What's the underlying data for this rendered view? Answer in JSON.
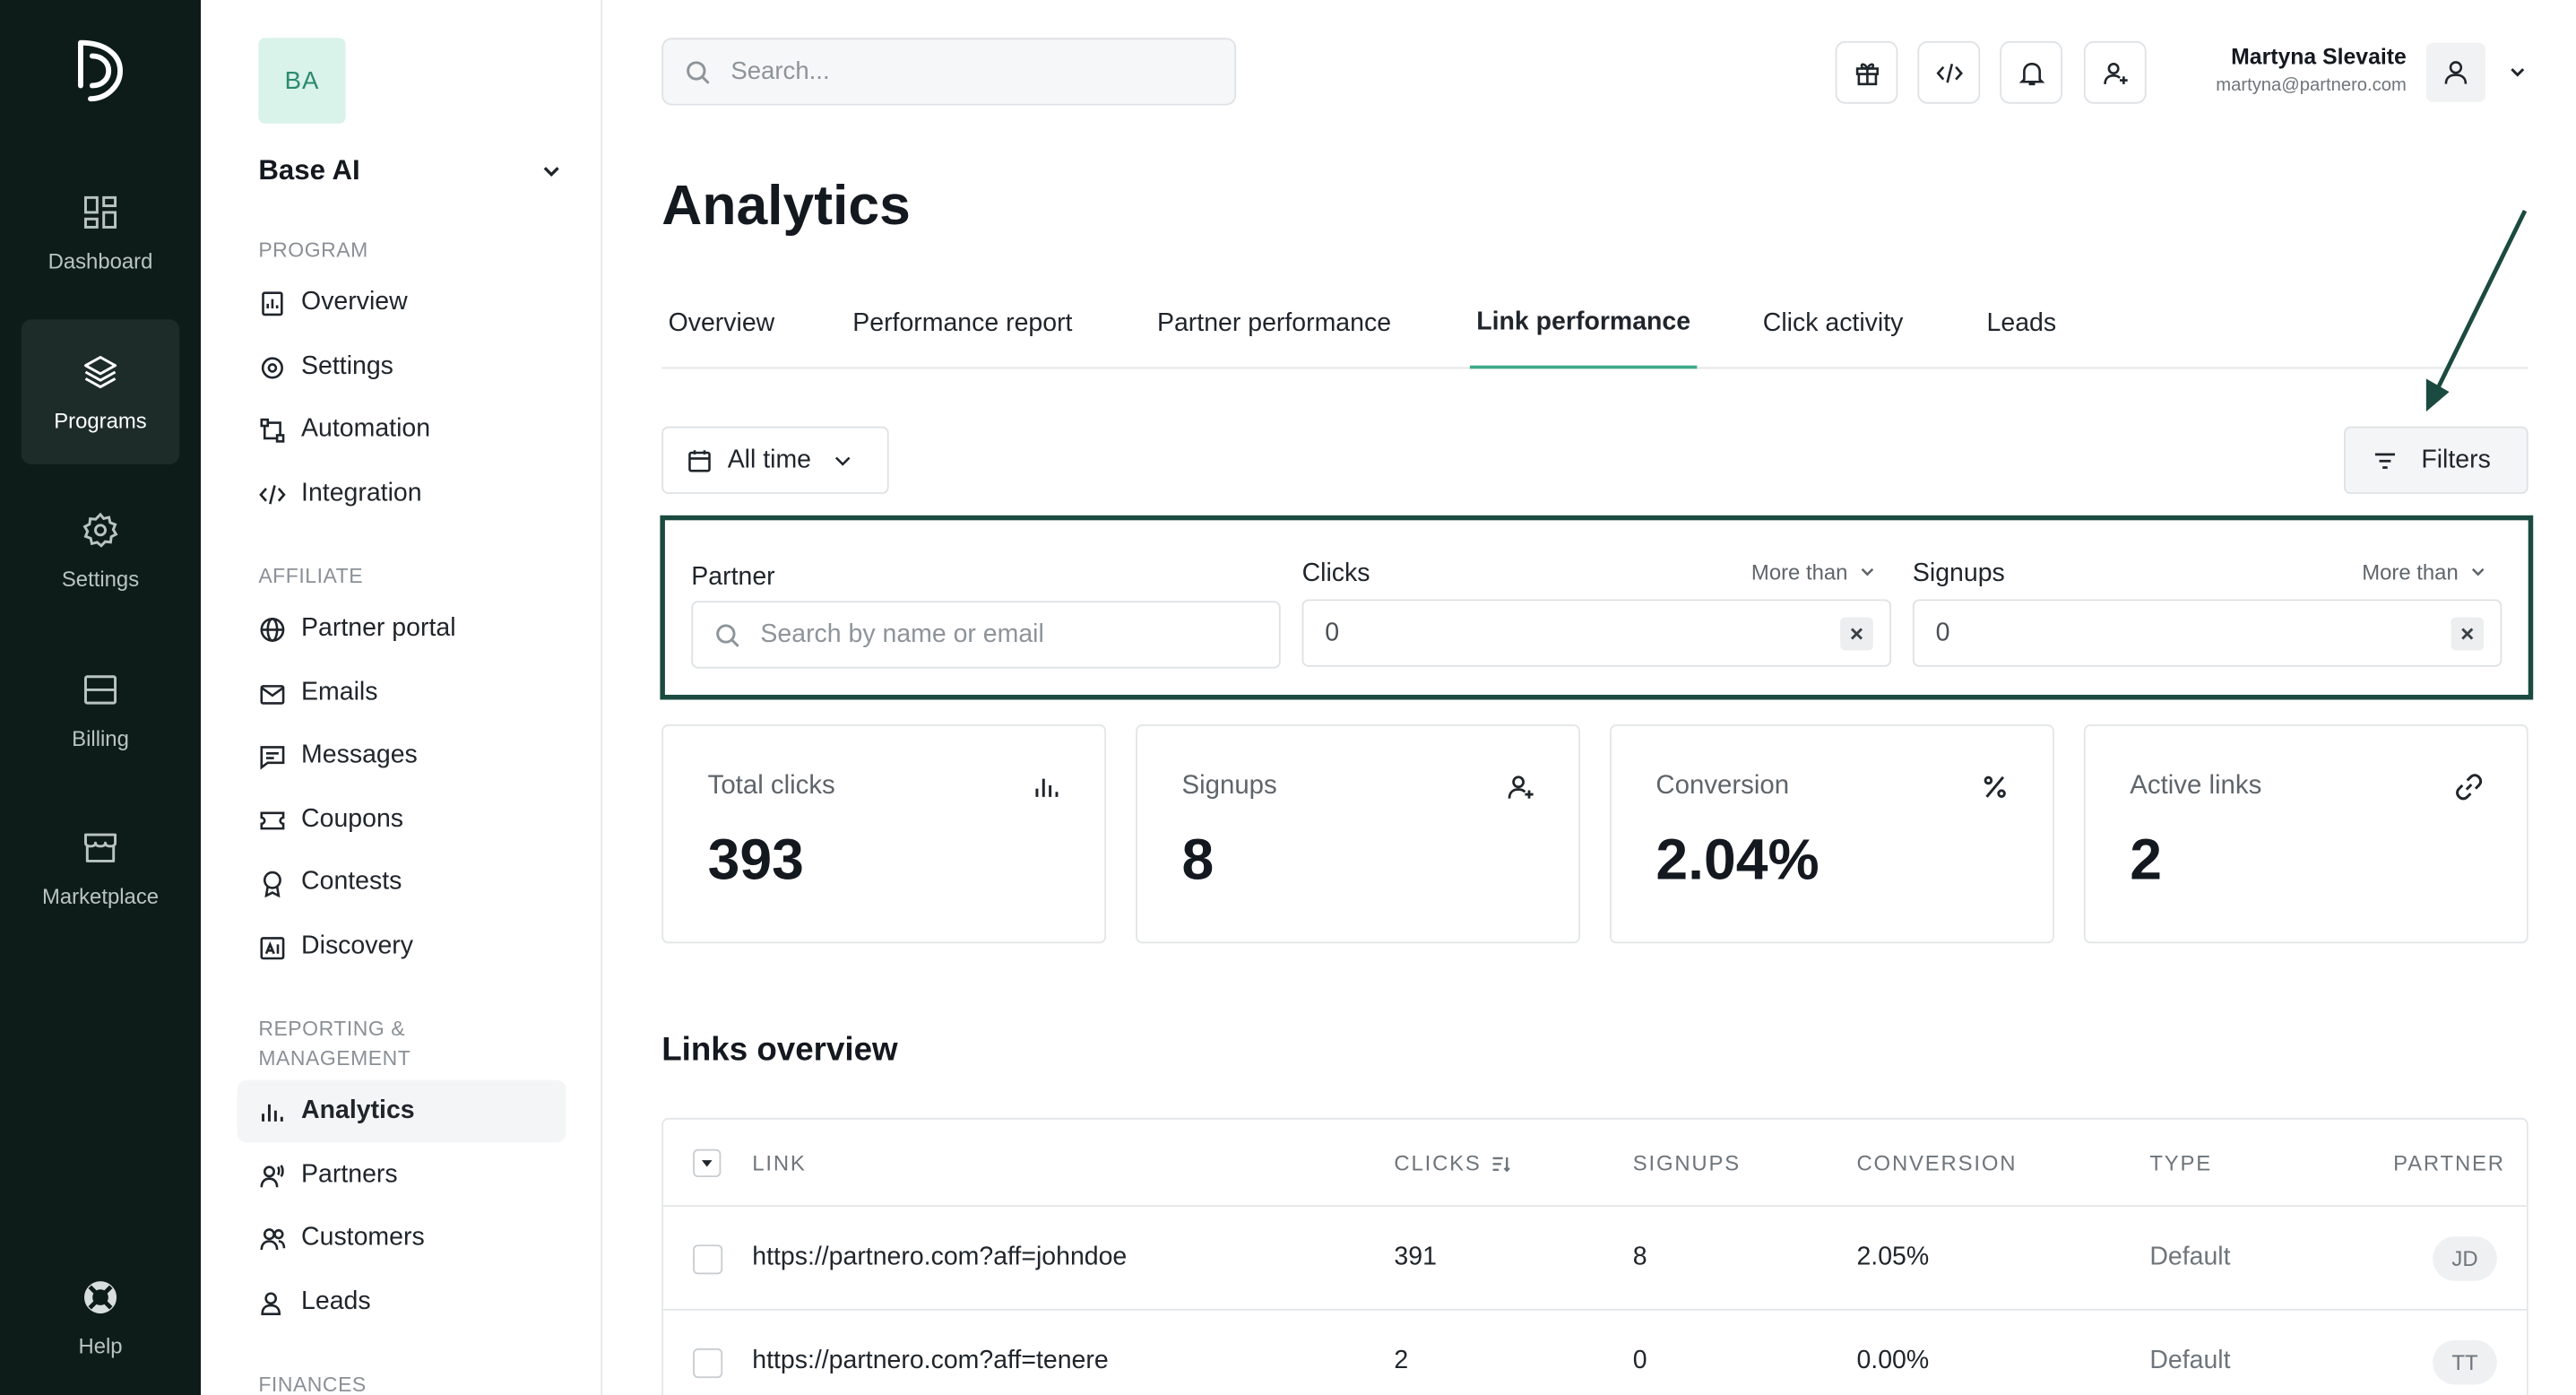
{
  "rail": {
    "items": [
      {
        "label": "Dashboard",
        "icon": "dashboard-icon"
      },
      {
        "label": "Programs",
        "icon": "layers-icon",
        "active": true
      },
      {
        "label": "Settings",
        "icon": "gear-icon"
      },
      {
        "label": "Billing",
        "icon": "billing-icon"
      },
      {
        "label": "Marketplace",
        "icon": "store-icon"
      },
      {
        "label": "Help",
        "icon": "lifebuoy-icon"
      }
    ]
  },
  "org": {
    "initials": "BA",
    "name": "Base AI"
  },
  "sidebar": {
    "program_label": "PROGRAM",
    "program": [
      {
        "label": "Overview",
        "icon": "report-icon"
      },
      {
        "label": "Settings",
        "icon": "gear-icon"
      },
      {
        "label": "Automation",
        "icon": "automation-icon"
      },
      {
        "label": "Integration",
        "icon": "code-icon"
      }
    ],
    "affiliate_label": "AFFILIATE",
    "affiliate": [
      {
        "label": "Partner portal",
        "icon": "globe-icon"
      },
      {
        "label": "Emails",
        "icon": "mail-icon"
      },
      {
        "label": "Messages",
        "icon": "message-icon"
      },
      {
        "label": "Coupons",
        "icon": "coupon-icon"
      },
      {
        "label": "Contests",
        "icon": "award-icon"
      },
      {
        "label": "Discovery",
        "icon": "discovery-icon"
      }
    ],
    "reporting_label_1": "REPORTING &",
    "reporting_label_2": "MANAGEMENT",
    "reporting": [
      {
        "label": "Analytics",
        "icon": "bar-chart-icon",
        "active": true
      },
      {
        "label": "Partners",
        "icon": "partners-icon"
      },
      {
        "label": "Customers",
        "icon": "customers-icon"
      },
      {
        "label": "Leads",
        "icon": "lead-icon"
      }
    ],
    "finances_label": "FINANCES"
  },
  "header": {
    "search_placeholder": "Search...",
    "user_name": "Martyna Slevaite",
    "user_email": "martyna@partnero.com"
  },
  "page": {
    "title": "Analytics",
    "tabs": [
      {
        "label": "Overview"
      },
      {
        "label": "Performance report"
      },
      {
        "label": "Partner performance"
      },
      {
        "label": "Link performance",
        "active": true
      },
      {
        "label": "Click activity"
      },
      {
        "label": "Leads"
      }
    ],
    "date_range": "All time",
    "filters_label": "Filters"
  },
  "filters": {
    "partner": {
      "label": "Partner",
      "placeholder": "Search by name or email"
    },
    "clicks": {
      "label": "Clicks",
      "mode": "More than",
      "value": "0"
    },
    "signups": {
      "label": "Signups",
      "mode": "More than",
      "value": "0"
    }
  },
  "stats": [
    {
      "label": "Total clicks",
      "value": "393",
      "icon": "bar-chart-icon"
    },
    {
      "label": "Signups",
      "value": "8",
      "icon": "user-plus-icon"
    },
    {
      "label": "Conversion",
      "value": "2.04%",
      "icon": "percent-icon"
    },
    {
      "label": "Active links",
      "value": "2",
      "icon": "link-icon"
    }
  ],
  "links_overview": {
    "title": "Links overview",
    "columns": [
      "LINK",
      "CLICKS",
      "SIGNUPS",
      "CONVERSION",
      "TYPE",
      "PARTNER"
    ],
    "rows": [
      {
        "link": "https://partnero.com?aff=johndoe",
        "clicks": "391",
        "signups": "8",
        "conversion": "2.05%",
        "type": "Default",
        "partner": "JD"
      },
      {
        "link": "https://partnero.com?aff=tenere",
        "clicks": "2",
        "signups": "0",
        "conversion": "0.00%",
        "type": "Default",
        "partner": "TT"
      }
    ]
  },
  "colors": {
    "rail_bg": "#0e1c19",
    "accent": "#3fa98a",
    "filter_border": "#1b4a40",
    "org_avatar_bg": "#d9f2ea"
  }
}
